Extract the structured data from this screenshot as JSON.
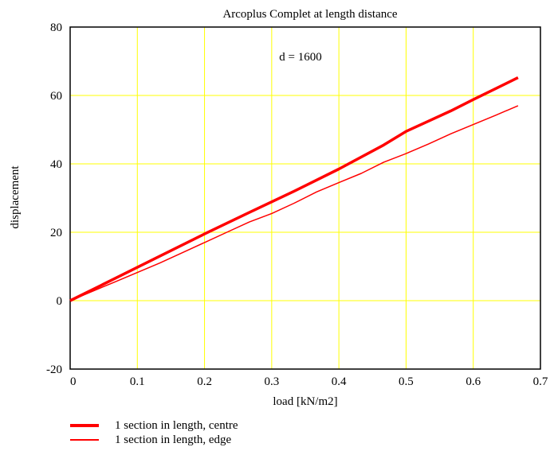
{
  "chart_data": {
    "type": "line",
    "title": "Arcoplus Complet at length distance",
    "annotation": "d = 1600",
    "xlabel": "load [kN/m2]",
    "ylabel": "displacement",
    "xlim": [
      0,
      0.7
    ],
    "ylim": [
      -20,
      80
    ],
    "xticks": [
      0,
      0.1,
      0.2,
      0.3,
      0.4,
      0.5,
      0.6,
      0.7
    ],
    "yticks": [
      -20,
      0,
      20,
      40,
      60,
      80
    ],
    "grid": true,
    "grid_color": "#ffff00",
    "legend_position": "bottom-left",
    "series": [
      {
        "name": "1 section in length, centre",
        "color": "#ff0000",
        "x": [
          0,
          0.0667,
          0.1333,
          0.2,
          0.2667,
          0.3333,
          0.4,
          0.4667,
          0.5,
          0.5333,
          0.5667,
          0.6,
          0.6333,
          0.6667
        ],
        "y": [
          0,
          6.5,
          13.0,
          19.5,
          25.8,
          32.0,
          38.5,
          45.5,
          49.5,
          52.5,
          55.5,
          58.8,
          62.0,
          65.2
        ]
      },
      {
        "name": "1 section in length, edge",
        "color": "#ff0000",
        "x": [
          0,
          0.0667,
          0.1333,
          0.1667,
          0.2,
          0.2333,
          0.2667,
          0.3,
          0.3333,
          0.3667,
          0.4,
          0.4333,
          0.4667,
          0.5,
          0.5333,
          0.5667,
          0.6,
          0.6333,
          0.6667
        ],
        "y": [
          0,
          5.5,
          11.0,
          14.0,
          17.0,
          20.0,
          23.0,
          25.5,
          28.5,
          31.8,
          34.5,
          37.2,
          40.5,
          43.0,
          45.8,
          48.8,
          51.5,
          54.2,
          57.0
        ]
      }
    ]
  }
}
